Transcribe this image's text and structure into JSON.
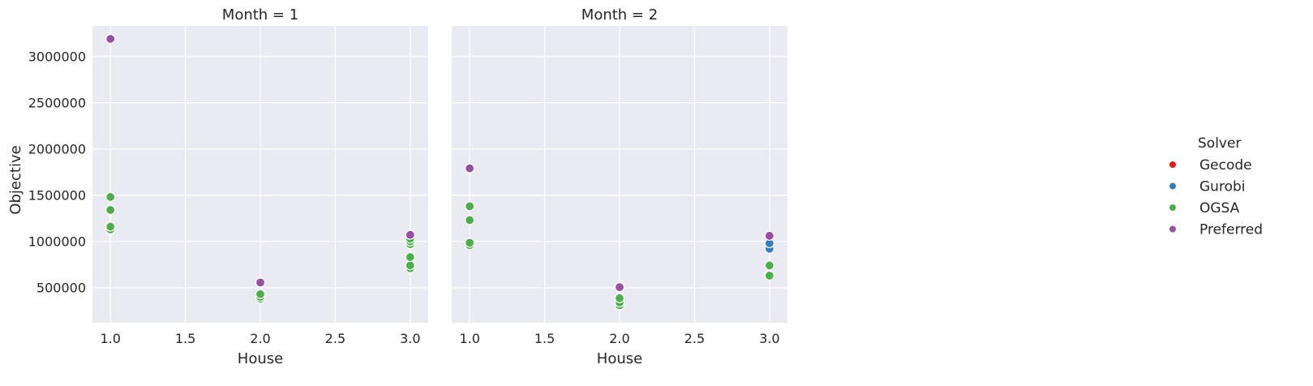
{
  "chart_data": [
    {
      "type": "scatter",
      "title": "Month = 1",
      "xlabel": "House",
      "ylabel": "Objective",
      "xlim": [
        0.88,
        3.12
      ],
      "ylim": [
        120000,
        3330000
      ],
      "xticks": [
        "1.0",
        "1.5",
        "2.0",
        "2.5",
        "3.0"
      ],
      "yticks": [
        "500000",
        "1000000",
        "1500000",
        "2000000",
        "2500000",
        "3000000"
      ],
      "grid": true,
      "series": [
        {
          "name": "Gecode",
          "x": [],
          "y": []
        },
        {
          "name": "Gurobi",
          "x": [],
          "y": []
        },
        {
          "name": "OGSA",
          "x": [
            1,
            1,
            1,
            1,
            2,
            2,
            2,
            3,
            3,
            3,
            3,
            3,
            3
          ],
          "y": [
            1130000,
            1160000,
            1340000,
            1480000,
            380000,
            400000,
            430000,
            710000,
            740000,
            830000,
            970000,
            1000000,
            1030000
          ]
        },
        {
          "name": "Preferred",
          "x": [
            1,
            2,
            3
          ],
          "y": [
            3190000,
            555000,
            1070000
          ]
        }
      ]
    },
    {
      "type": "scatter",
      "title": "Month = 2",
      "xlabel": "House",
      "ylabel": "",
      "xlim": [
        0.88,
        3.12
      ],
      "ylim": [
        120000,
        3330000
      ],
      "xticks": [
        "1.0",
        "1.5",
        "2.0",
        "2.5",
        "3.0"
      ],
      "yticks": [],
      "grid": true,
      "series": [
        {
          "name": "Gecode",
          "x": [],
          "y": []
        },
        {
          "name": "Gurobi",
          "x": [
            3,
            3
          ],
          "y": [
            920000,
            980000
          ]
        },
        {
          "name": "OGSA",
          "x": [
            1,
            1,
            1,
            1,
            2,
            2,
            2,
            3,
            3
          ],
          "y": [
            960000,
            985000,
            1230000,
            1380000,
            310000,
            340000,
            385000,
            630000,
            740000
          ]
        },
        {
          "name": "Preferred",
          "x": [
            1,
            2,
            3
          ],
          "y": [
            1790000,
            505000,
            1060000
          ]
        }
      ]
    }
  ],
  "legend": {
    "title": "Solver",
    "placement": "right",
    "items": [
      {
        "label": "Gecode",
        "color": "#e41a1c"
      },
      {
        "label": "Gurobi",
        "color": "#377eb8"
      },
      {
        "label": "OGSA",
        "color": "#4daf4a"
      },
      {
        "label": "Preferred",
        "color": "#984ea3"
      }
    ]
  }
}
